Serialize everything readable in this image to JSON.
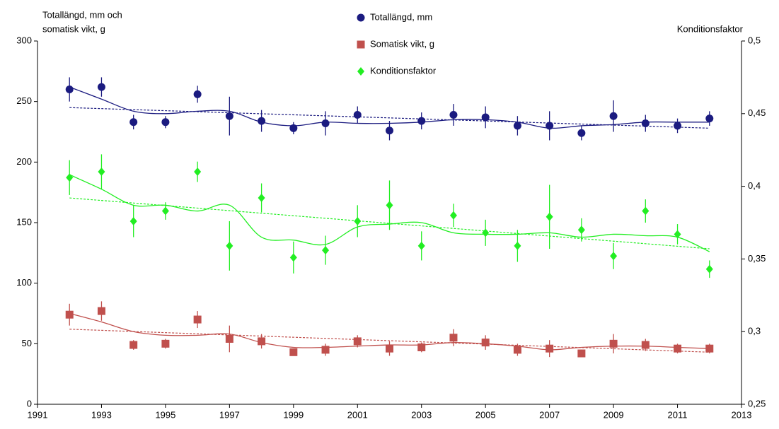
{
  "chart_data": {
    "type": "errorbar-line",
    "y_label": [
      "Totallängd,  mm och",
      "somatisk vikt, g"
    ],
    "y2_label": "Konditionsfaktor",
    "x": [
      1992,
      1993,
      1994,
      1995,
      1996,
      1997,
      1998,
      1999,
      2000,
      2001,
      2002,
      2003,
      2004,
      2005,
      2006,
      2007,
      2008,
      2009,
      2010,
      2011,
      2012
    ],
    "xlim": [
      1991,
      2013
    ],
    "xticks": [
      1991,
      1993,
      1995,
      1997,
      1999,
      2001,
      2003,
      2005,
      2007,
      2009,
      2011,
      2013
    ],
    "ylim": [
      0,
      300
    ],
    "yticks": [
      0,
      50,
      100,
      150,
      200,
      250,
      300
    ],
    "y2lim": [
      0.25,
      0.5
    ],
    "y2ticks": [
      {
        "value": 0.25,
        "label": "0,25"
      },
      {
        "value": 0.3,
        "label": "0,3"
      },
      {
        "value": 0.35,
        "label": "0,35"
      },
      {
        "value": 0.4,
        "label": "0,4"
      },
      {
        "value": 0.45,
        "label": "0,45"
      },
      {
        "value": 0.5,
        "label": "0,5"
      }
    ],
    "series": [
      {
        "name": "Totallängd, mm",
        "color": "#1b1b80",
        "marker": "circle",
        "axis": "y",
        "values": [
          260,
          262,
          233,
          233,
          256,
          238,
          234,
          228,
          232,
          239,
          226,
          234,
          239,
          237,
          230,
          230,
          224,
          238,
          232,
          230,
          236
        ],
        "errors": [
          10,
          8,
          6,
          5,
          7,
          16,
          9,
          5,
          10,
          7,
          8,
          7,
          9,
          9,
          8,
          12,
          6,
          13,
          7,
          6,
          6
        ],
        "smooth": [
          262,
          252,
          242,
          240,
          242,
          242,
          233,
          230,
          233,
          232,
          232,
          233,
          235,
          235,
          233,
          228,
          230,
          231,
          233,
          233,
          233
        ],
        "trend": [
          245,
          228
        ]
      },
      {
        "name": "Somatisk vikt, g",
        "color": "#c0504d",
        "marker": "square",
        "axis": "y",
        "values": [
          74,
          77,
          49,
          50,
          70,
          54,
          52,
          43,
          45,
          52,
          46,
          47,
          55,
          51,
          45,
          46,
          42,
          50,
          49,
          46,
          46
        ],
        "errors": [
          9,
          8,
          4,
          4,
          7,
          11,
          6,
          3,
          5,
          5,
          6,
          4,
          7,
          6,
          5,
          7,
          3,
          8,
          5,
          4,
          4
        ],
        "smooth": [
          75,
          68,
          60,
          57,
          57,
          58,
          51,
          47,
          47,
          48,
          49,
          49,
          51,
          50,
          48,
          45,
          47,
          48,
          48,
          47,
          46
        ],
        "trend": [
          62,
          43
        ]
      },
      {
        "name": "Konditionsfaktor",
        "color": "#22ee22",
        "marker": "diamond",
        "axis": "y2",
        "values": [
          0.406,
          0.41,
          0.376,
          0.383,
          0.41,
          0.359,
          0.392,
          0.351,
          0.356,
          0.376,
          0.387,
          0.359,
          0.38,
          0.368,
          0.359,
          0.379,
          0.37,
          0.352,
          0.383,
          0.367,
          0.343
        ],
        "errors": [
          0.012,
          0.012,
          0.011,
          0.006,
          0.007,
          0.017,
          0.01,
          0.011,
          0.01,
          0.011,
          0.017,
          0.01,
          0.008,
          0.009,
          0.011,
          0.022,
          0.008,
          0.009,
          0.008,
          0.007,
          0.006
        ],
        "smooth": [
          0.408,
          0.398,
          0.387,
          0.387,
          0.383,
          0.387,
          0.365,
          0.363,
          0.36,
          0.372,
          0.374,
          0.375,
          0.368,
          0.367,
          0.367,
          0.368,
          0.365,
          0.367,
          0.366,
          0.365,
          0.355
        ],
        "trend": [
          0.392,
          0.357
        ]
      }
    ]
  }
}
